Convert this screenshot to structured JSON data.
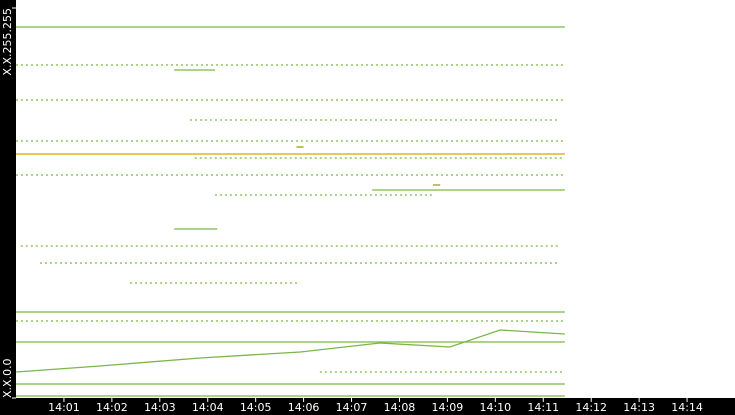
{
  "chart_data": {
    "type": "line",
    "xlim": [
      0,
      15
    ],
    "xticks": [
      {
        "value": 1,
        "label": "14:01"
      },
      {
        "value": 2,
        "label": "14:02"
      },
      {
        "value": 3,
        "label": "14:03"
      },
      {
        "value": 4,
        "label": "14:04"
      },
      {
        "value": 5,
        "label": "14:05"
      },
      {
        "value": 6,
        "label": "14:06"
      },
      {
        "value": 7,
        "label": "14:07"
      },
      {
        "value": 8,
        "label": "14:08"
      },
      {
        "value": 9,
        "label": "14:09"
      },
      {
        "value": 10,
        "label": "14:10"
      },
      {
        "value": 11,
        "label": "14:11"
      },
      {
        "value": 12,
        "label": "14:12"
      },
      {
        "value": 13,
        "label": "14:13"
      },
      {
        "value": 14,
        "label": "14:14"
      }
    ],
    "ylim": [
      0,
      65535
    ],
    "yticks": [
      {
        "value": 0,
        "label": "X.X.0.0"
      },
      {
        "value": 65535,
        "label": "X.X.255.255"
      }
    ],
    "series": [
      {
        "color": "#7ab648",
        "x": [
          0,
          11.45
        ],
        "values": [
          62342,
          62342
        ]
      },
      {
        "color": "#e0a000",
        "x": [
          0,
          11.45
        ],
        "values": [
          41001,
          41001
        ]
      },
      {
        "color": "#7ab648",
        "x": [
          0,
          11.45
        ],
        "values": [
          37472,
          37472
        ],
        "dotted": true
      },
      {
        "color": "#7ab648",
        "x": [
          3.73,
          11.45
        ],
        "values": [
          40329,
          40329
        ],
        "dotted": true
      },
      {
        "color": "#7ab648",
        "x": [
          7.43,
          11.45
        ],
        "values": [
          34952,
          34952
        ]
      },
      {
        "color": "#7ab648",
        "x": [
          4.15,
          8.74
        ],
        "values": [
          34112,
          34112
        ],
        "dotted": true
      },
      {
        "color": "#7ab648",
        "x": [
          3.3,
          4.2
        ],
        "values": [
          28398,
          28398
        ]
      },
      {
        "color": "#7ab648",
        "x": [
          0,
          11.45
        ],
        "values": [
          14451,
          14451
        ]
      },
      {
        "color": "#7ab648",
        "x": [
          0,
          11.45
        ],
        "values": [
          12939,
          12939
        ],
        "dotted": true
      },
      {
        "color": "#7ab648",
        "x": [
          0,
          11.45
        ],
        "values": [
          9410,
          9410
        ]
      },
      {
        "color": "#7ab648",
        "x": [
          6.34,
          11.45
        ],
        "values": [
          4369,
          4369
        ],
        "dotted": true
      },
      {
        "color": "#7ab648",
        "x": [
          0,
          11.45
        ],
        "values": [
          2353,
          2353
        ]
      },
      {
        "color": "#7ab648",
        "x": [
          0,
          11.45
        ],
        "values": [
          336,
          336
        ]
      },
      {
        "color": "#7ab648",
        "x": [
          3.3,
          4.15
        ],
        "values": [
          55116,
          55116
        ]
      },
      {
        "color": "#7ab648",
        "x": [
          2.38,
          5.93
        ],
        "values": [
          19324,
          19324
        ],
        "dotted": true
      },
      {
        "color": "#7ab648",
        "x": [
          0.5,
          11.35
        ],
        "values": [
          22685,
          22685
        ],
        "dotted": true
      },
      {
        "color": "#7ab648",
        "x": [
          0.1,
          11.35
        ],
        "values": [
          25541,
          25541
        ],
        "dotted": true
      },
      {
        "color": "#7ab648",
        "x": [
          0,
          1.75,
          3.84,
          5.93,
          7.59,
          9.05,
          10.1,
          11.45
        ],
        "values": [
          4369,
          5377,
          6721,
          7730,
          9242,
          8570,
          11427,
          10755
        ]
      },
      {
        "color": "#7ab648",
        "x": [
          0,
          11.45
        ],
        "values": [
          50075,
          50075
        ],
        "dotted": true
      },
      {
        "color": "#7ab648",
        "x": [
          0,
          11.45
        ],
        "values": [
          55957,
          55957
        ],
        "dotted": true
      },
      {
        "color": "#7ab648",
        "x": [
          0,
          11.45
        ],
        "values": [
          43186,
          43186
        ],
        "dotted": true
      },
      {
        "color": "#7ab648",
        "x": [
          3.63,
          11.35
        ],
        "values": [
          46715,
          46715
        ],
        "dotted": true
      },
      {
        "color": "#a0a000",
        "x": [
          5.85,
          6.0
        ],
        "values": [
          42177,
          42177
        ]
      },
      {
        "color": "#a0a000",
        "x": [
          8.7,
          8.85
        ],
        "values": [
          35792,
          35792
        ]
      }
    ]
  }
}
